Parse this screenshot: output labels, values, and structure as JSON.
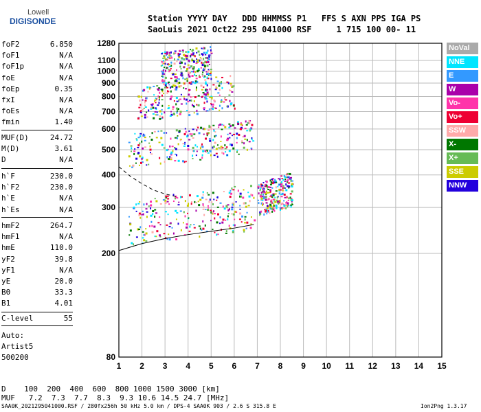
{
  "logo": {
    "line1": "Lowell",
    "line2": "DIGISONDE"
  },
  "header": {
    "line1": "Station YYYY DAY   DDD HHMMSS P1   FFS S AXN PPS IGA PS",
    "line2": "SaoLuis 2021 Oct22 295 041000 RSF     1 715 100 00- 11"
  },
  "params_group1": [
    {
      "name": "foF2",
      "value": "6.850"
    },
    {
      "name": "foF1",
      "value": "N/A"
    },
    {
      "name": "foF1p",
      "value": "N/A"
    },
    {
      "name": "foE",
      "value": "N/A"
    },
    {
      "name": "foEp",
      "value": "0.35"
    },
    {
      "name": "fxI",
      "value": "N/A"
    },
    {
      "name": "foEs",
      "value": "N/A"
    },
    {
      "name": "fmin",
      "value": "1.40"
    }
  ],
  "params_group2": [
    {
      "name": "MUF(D)",
      "value": "24.72"
    },
    {
      "name": "M(D)",
      "value": "3.61"
    },
    {
      "name": "D",
      "value": "N/A"
    }
  ],
  "params_group3": [
    {
      "name": "h`F",
      "value": "230.0"
    },
    {
      "name": "h`F2",
      "value": "230.0"
    },
    {
      "name": "h`E",
      "value": "N/A"
    },
    {
      "name": "h`Es",
      "value": "N/A"
    }
  ],
  "params_group4": [
    {
      "name": "hmF2",
      "value": "264.7"
    },
    {
      "name": "hmF1",
      "value": "N/A"
    },
    {
      "name": "hmE",
      "value": "110.0"
    },
    {
      "name": "yF2",
      "value": "39.8"
    },
    {
      "name": "yF1",
      "value": "N/A"
    },
    {
      "name": "yE",
      "value": "20.0"
    },
    {
      "name": "B0",
      "value": "33.3"
    },
    {
      "name": "B1",
      "value": "4.01"
    }
  ],
  "clevel": {
    "name": "C-level",
    "value": "55"
  },
  "auto": {
    "line1": "Auto:",
    "line2": "Artist5",
    "line3": "500200"
  },
  "dmuf": {
    "d_line": "D    100  200  400  600  800 1000 1500 3000 [km]",
    "muf_line": "MUF   7.2  7.3  7.7  8.3  9.3 10.6 14.5 24.7 [MHz]"
  },
  "footer": {
    "left": "SAA0K_2021295041000.RSF / 280fx256h 50 kHz 5.0 km / DPS-4 SAA0K 903 / 2.6 S 315.8 E",
    "right": "Ion2Png 1.3.17"
  },
  "legend": [
    {
      "label": "NoVal",
      "color": "#aaaaaa"
    },
    {
      "label": "NNE",
      "color": "#00e5ff"
    },
    {
      "label": "E",
      "color": "#3399ff"
    },
    {
      "label": "W",
      "color": "#aa00aa"
    },
    {
      "label": "Vo-",
      "color": "#ff33aa"
    },
    {
      "label": "Vo+",
      "color": "#ee0033"
    },
    {
      "label": "SSW",
      "color": "#ffaaaa"
    },
    {
      "label": "X-",
      "color": "#007700"
    },
    {
      "label": "X+",
      "color": "#66bb55"
    },
    {
      "label": "SSE",
      "color": "#cccc00"
    },
    {
      "label": "NNW",
      "color": "#2200dd"
    }
  ],
  "chart_data": {
    "type": "scatter",
    "title": "",
    "xlabel": "",
    "ylabel": "",
    "xlim": [
      1,
      15
    ],
    "ylim": [
      80,
      1280
    ],
    "y_scale": "log",
    "x_ticks": [
      1,
      2,
      3,
      4,
      5,
      6,
      7,
      8,
      9,
      10,
      11,
      12,
      13,
      14,
      15
    ],
    "y_ticks": [
      80,
      200,
      300,
      400,
      500,
      600,
      700,
      800,
      900,
      1000,
      1100,
      1280
    ],
    "grid": true,
    "echo_traces": [
      {
        "name": "1-hop F trace",
        "x": [
          1.4,
          2,
          3,
          4,
          5,
          6,
          6.85
        ],
        "y": [
          235,
          240,
          250,
          255,
          262,
          270,
          275
        ]
      },
      {
        "name": "2-hop F trace",
        "x": [
          1.4,
          2,
          3,
          4,
          5,
          6,
          6.85
        ],
        "y": [
          460,
          470,
          480,
          490,
          500,
          515,
          530
        ]
      },
      {
        "name": "3-hop F trace",
        "x": [
          1.8,
          2,
          3,
          4,
          5,
          6
        ],
        "y": [
          690,
          700,
          720,
          740,
          760,
          780
        ]
      },
      {
        "name": "4-hop F trace",
        "x": [
          2.8,
          3,
          4,
          5
        ],
        "y": [
          950,
          960,
          980,
          1010
        ]
      },
      {
        "name": "oblique cluster",
        "x": [
          7,
          7.5,
          8,
          8.5
        ],
        "y": [
          300,
          310,
          320,
          330
        ]
      }
    ],
    "model_curves": [
      {
        "name": "solid profile",
        "x": [
          1,
          2,
          3,
          4,
          5,
          6,
          6.85
        ],
        "y": [
          205,
          218,
          228,
          236,
          243,
          250,
          258
        ]
      },
      {
        "name": "dashed profile",
        "x": [
          1,
          1.5,
          2,
          2.5,
          3,
          3.5
        ],
        "y": [
          430,
          395,
          370,
          350,
          338,
          330
        ]
      }
    ]
  }
}
